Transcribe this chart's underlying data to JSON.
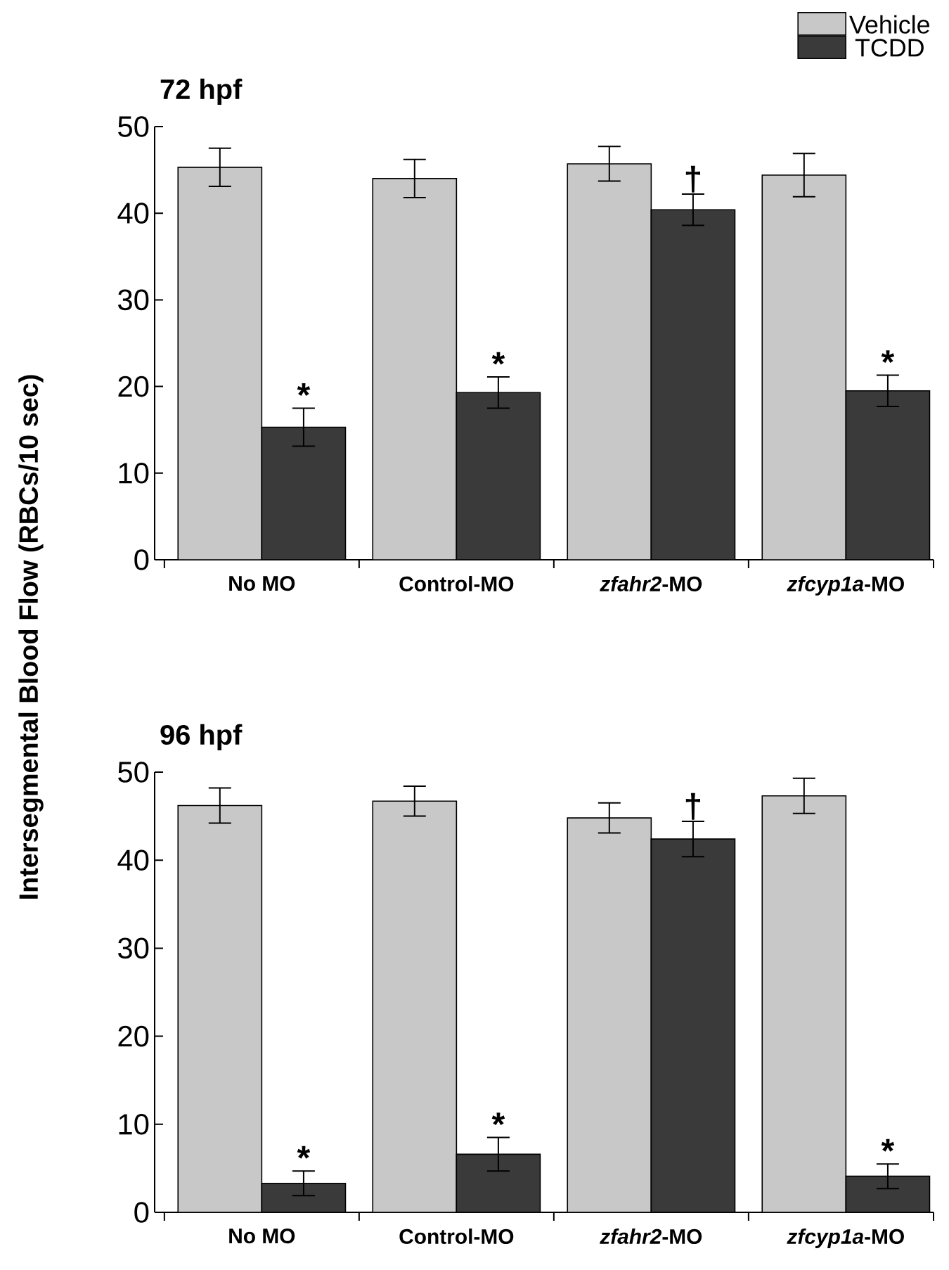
{
  "chart_data": [
    {
      "type": "bar",
      "title": "72 hpf",
      "ylabel": "Intersegmental Blood Flow (RBCs/10 sec)",
      "categories": [
        "No MO",
        "Control-MO",
        "*zfahr2*-MO",
        "*zfcyp1a*-MO"
      ],
      "ylim": [
        0,
        50
      ],
      "yticks": [
        0,
        10,
        20,
        30,
        40,
        50
      ],
      "legend": "top right",
      "series": [
        {
          "name": "Vehicle",
          "color": "#c8c8c8",
          "values": [
            45.3,
            44.0,
            45.7,
            44.4
          ],
          "errors": [
            2.2,
            2.2,
            2.0,
            2.5
          ]
        },
        {
          "name": "TCDD",
          "color": "#3a3a3a",
          "values": [
            15.3,
            19.3,
            40.4,
            19.5
          ],
          "errors": [
            2.2,
            1.8,
            1.8,
            1.8
          ]
        }
      ],
      "annotations": [
        {
          "text": "*",
          "x": "No MO",
          "y": 17.5
        },
        {
          "text": "*",
          "x": "Control-MO",
          "y": 21.1
        },
        {
          "text": "†",
          "x": "*zfahr2*-MO",
          "y": 42.2
        },
        {
          "text": "*",
          "x": "*zfcyp1a*-MO",
          "y": 21.3
        }
      ]
    },
    {
      "type": "bar",
      "title": "96 hpf",
      "categories": [
        "No MO",
        "Control-MO",
        "*zfahr2*-MO",
        "*zfcyp1a*-MO"
      ],
      "ylim": [
        0,
        50
      ],
      "yticks": [
        0,
        10,
        20,
        30,
        40,
        50
      ],
      "series": [
        {
          "color": "#c8c8c8",
          "values": [
            46.2,
            46.7,
            44.8,
            47.3
          ],
          "errors": [
            2.0,
            1.7,
            1.7,
            2.0
          ]
        },
        {
          "color": "#3a3a3a",
          "values": [
            3.3,
            6.6,
            42.4,
            4.1
          ],
          "errors": [
            1.4,
            1.9,
            2.0,
            1.4
          ]
        }
      ],
      "annotations": [
        {
          "text": "*",
          "x": "No MO",
          "y": 4.7
        },
        {
          "text": "*",
          "x": "Control-MO",
          "y": 8.5
        },
        {
          "text": "†",
          "x": "*zfahr2*-MO",
          "y": 44.4
        },
        {
          "text": "*",
          "x": "*zfcyp1a*-MO",
          "y": 5.5
        }
      ]
    }
  ]
}
